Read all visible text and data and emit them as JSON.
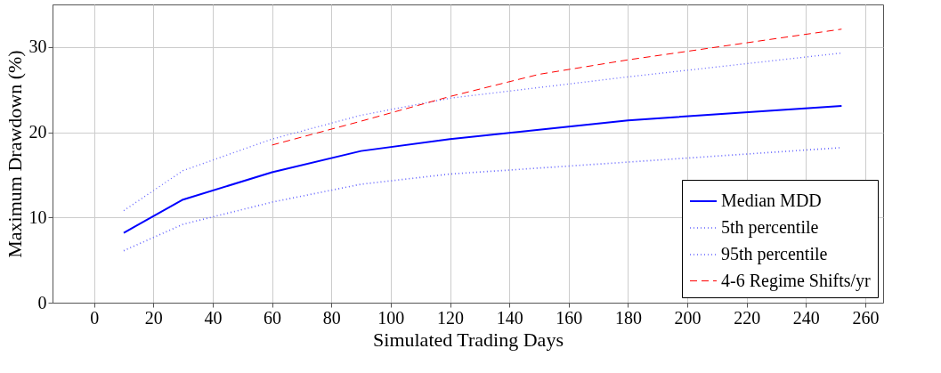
{
  "chart_data": {
    "type": "line",
    "xlabel": "Simulated Trading Days",
    "ylabel": "Maximum Drawdown (%)",
    "xlim": [
      -14,
      266
    ],
    "xticks": [
      0,
      20,
      40,
      60,
      80,
      100,
      120,
      140,
      160,
      180,
      200,
      220,
      240,
      260
    ],
    "ylim": [
      0,
      35
    ],
    "yticks": [
      0,
      10,
      20,
      30
    ],
    "grid": true,
    "legend": "bottom right",
    "series": [
      {
        "name": "Median MDD",
        "color": "#0000ff",
        "line_style": "solid",
        "x": [
          10,
          30,
          60,
          90,
          120,
          180,
          252
        ],
        "values": [
          8.2,
          12.1,
          15.3,
          17.8,
          19.2,
          21.4,
          23.1
        ]
      },
      {
        "name": "5th percentile",
        "color": "#6666ff",
        "line_style": "dotted",
        "x": [
          10,
          30,
          60,
          90,
          120,
          180,
          252
        ],
        "values": [
          6.1,
          9.2,
          11.8,
          13.9,
          15.1,
          16.5,
          18.2
        ]
      },
      {
        "name": "95th percentile",
        "color": "#6666ff",
        "line_style": "dotted",
        "x": [
          10,
          30,
          60,
          90,
          120,
          180,
          252
        ],
        "values": [
          10.8,
          15.5,
          19.2,
          22.0,
          24.0,
          26.5,
          29.3
        ]
      },
      {
        "name": "4-6 Regime Shifts/yr",
        "color": "#ff0000",
        "line_style": "dashed",
        "x": [
          60,
          90,
          120,
          150,
          180,
          252
        ],
        "values": [
          18.5,
          21.3,
          24.2,
          26.8,
          28.5,
          32.1
        ]
      }
    ]
  }
}
